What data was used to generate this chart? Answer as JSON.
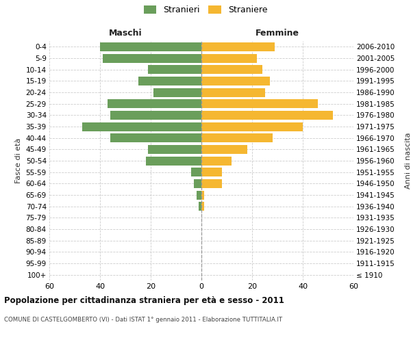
{
  "age_groups": [
    "100+",
    "95-99",
    "90-94",
    "85-89",
    "80-84",
    "75-79",
    "70-74",
    "65-69",
    "60-64",
    "55-59",
    "50-54",
    "45-49",
    "40-44",
    "35-39",
    "30-34",
    "25-29",
    "20-24",
    "15-19",
    "10-14",
    "5-9",
    "0-4"
  ],
  "birth_years": [
    "≤ 1910",
    "1911-1915",
    "1916-1920",
    "1921-1925",
    "1926-1930",
    "1931-1935",
    "1936-1940",
    "1941-1945",
    "1946-1950",
    "1951-1955",
    "1956-1960",
    "1961-1965",
    "1966-1970",
    "1971-1975",
    "1976-1980",
    "1981-1985",
    "1986-1990",
    "1991-1995",
    "1996-2000",
    "2001-2005",
    "2006-2010"
  ],
  "maschi": [
    0,
    0,
    0,
    0,
    0,
    0,
    1,
    2,
    3,
    4,
    22,
    21,
    36,
    47,
    36,
    37,
    19,
    25,
    21,
    39,
    40
  ],
  "femmine": [
    0,
    0,
    0,
    0,
    0,
    0,
    1,
    1,
    8,
    8,
    12,
    18,
    28,
    40,
    52,
    46,
    25,
    27,
    24,
    22,
    29
  ],
  "color_maschi": "#6a9e5b",
  "color_femmine": "#f5b731",
  "title": "Popolazione per cittadinanza straniera per età e sesso - 2011",
  "subtitle": "COMUNE DI CASTELGOMBERTO (VI) - Dati ISTAT 1° gennaio 2011 - Elaborazione TUTTITALIA.IT",
  "legend_maschi": "Stranieri",
  "legend_femmine": "Straniere",
  "xlabel_left": "Maschi",
  "xlabel_right": "Femmine",
  "ylabel_left": "Fasce di età",
  "ylabel_right": "Anni di nascita",
  "xlim": 60,
  "background_color": "#ffffff",
  "grid_color": "#cccccc"
}
